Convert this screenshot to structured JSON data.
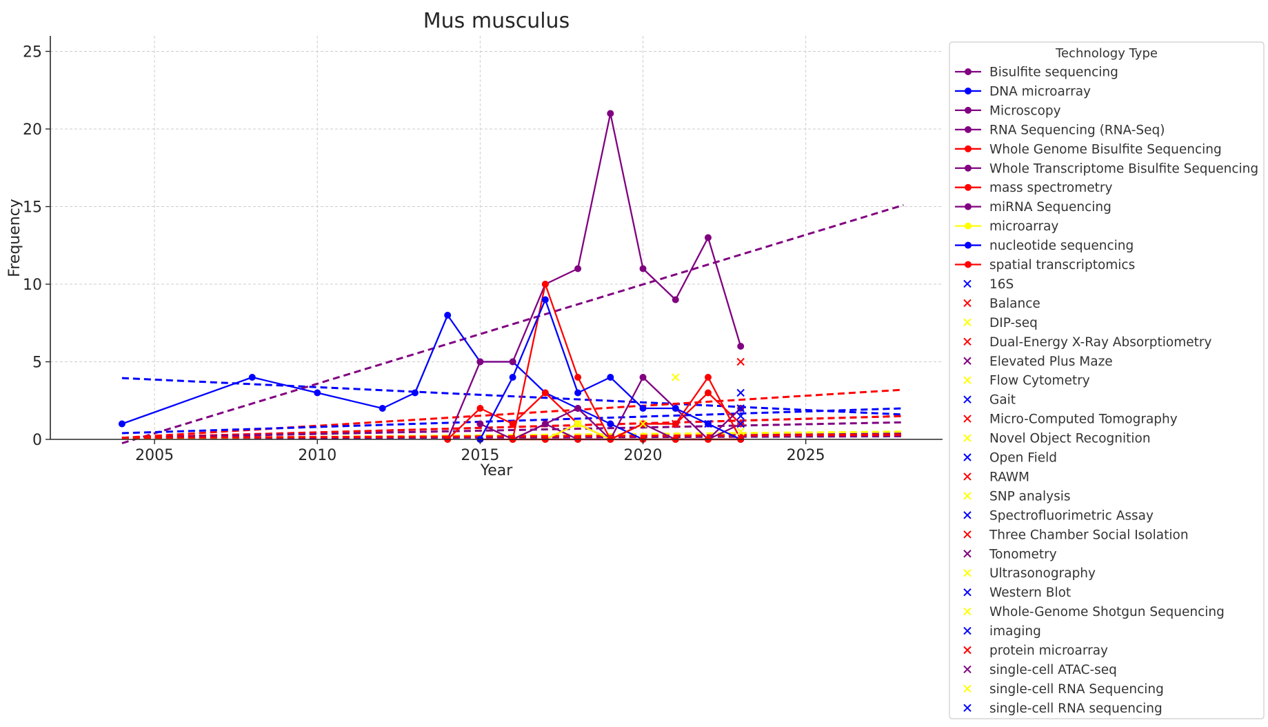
{
  "chart_data": {
    "type": "line",
    "title": "Mus musculus",
    "xlabel": "Year",
    "ylabel": "Frequency",
    "xlim": [
      2001.8,
      2029.2
    ],
    "ylim": [
      0,
      26
    ],
    "xticks": [
      2005,
      2010,
      2015,
      2020,
      2025
    ],
    "yticks": [
      0,
      5,
      10,
      15,
      20,
      25
    ],
    "grid": true,
    "legend": {
      "title": "Technology Type",
      "placement": "outside-right"
    },
    "line_series": [
      {
        "name": "Bisulfite sequencing",
        "color": "#800080",
        "points": [
          [
            2015,
            1
          ],
          [
            2016,
            0
          ],
          [
            2017,
            1
          ],
          [
            2018,
            0
          ],
          [
            2019,
            0
          ],
          [
            2020,
            1
          ],
          [
            2021,
            0
          ],
          [
            2022,
            0
          ],
          [
            2023,
            1
          ]
        ],
        "trend": [
          [
            2004,
            0.1
          ],
          [
            2028,
            1.5
          ]
        ]
      },
      {
        "name": "DNA microarray",
        "color": "#0000ff",
        "points": [
          [
            2004,
            1
          ],
          [
            2008,
            4
          ],
          [
            2010,
            3
          ],
          [
            2012,
            2
          ],
          [
            2013,
            3
          ],
          [
            2014,
            8
          ],
          [
            2015,
            5
          ],
          [
            2016,
            5
          ],
          [
            2017,
            3
          ],
          [
            2018,
            2
          ],
          [
            2019,
            1
          ],
          [
            2020,
            0
          ],
          [
            2021,
            0
          ],
          [
            2022,
            0
          ]
        ],
        "trend": [
          [
            2004,
            3.95
          ],
          [
            2028,
            1.6
          ]
        ]
      },
      {
        "name": "Microscopy",
        "color": "#800080",
        "points": [
          [
            2016,
            0
          ],
          [
            2017,
            0
          ],
          [
            2018,
            1
          ],
          [
            2019,
            0
          ],
          [
            2020,
            0
          ],
          [
            2021,
            0
          ],
          [
            2022,
            0
          ],
          [
            2023,
            0
          ]
        ],
        "trend": [
          [
            2004,
            0.05
          ],
          [
            2028,
            0.4
          ]
        ]
      },
      {
        "name": "RNA Sequencing (RNA-Seq)",
        "color": "#800080",
        "points": [
          [
            2014,
            0
          ],
          [
            2015,
            5
          ],
          [
            2016,
            5
          ],
          [
            2017,
            10
          ],
          [
            2018,
            11
          ],
          [
            2019,
            21
          ],
          [
            2020,
            11
          ],
          [
            2021,
            9
          ],
          [
            2022,
            13
          ],
          [
            2023,
            6
          ]
        ],
        "trend": [
          [
            2004,
            -3.5
          ],
          [
            2028,
            15.1
          ]
        ]
      },
      {
        "name": "Whole Genome Bisulfite Sequencing",
        "color": "#ff0000",
        "points": [
          [
            2014,
            0
          ],
          [
            2015,
            2
          ],
          [
            2016,
            1
          ],
          [
            2017,
            3
          ],
          [
            2018,
            1
          ],
          [
            2019,
            0
          ],
          [
            2020,
            1
          ],
          [
            2021,
            1
          ],
          [
            2022,
            3
          ],
          [
            2023,
            1
          ]
        ],
        "trend": [
          [
            2004,
            0.1
          ],
          [
            2028,
            1.5
          ]
        ]
      },
      {
        "name": "Whole Transcriptome Bisulfite Sequencing",
        "color": "#800080",
        "points": [
          [
            2016,
            0
          ],
          [
            2017,
            1
          ],
          [
            2018,
            2
          ],
          [
            2019,
            0
          ],
          [
            2020,
            4
          ],
          [
            2021,
            2
          ],
          [
            2022,
            0
          ],
          [
            2023,
            2
          ]
        ],
        "trend": [
          [
            2004,
            0.1
          ],
          [
            2028,
            1.1
          ]
        ]
      },
      {
        "name": "mass spectrometry",
        "color": "#ff0000",
        "points": [
          [
            2015,
            0
          ],
          [
            2016,
            0
          ],
          [
            2017,
            10
          ],
          [
            2018,
            4
          ],
          [
            2019,
            0
          ],
          [
            2020,
            1
          ],
          [
            2021,
            1
          ],
          [
            2022,
            4
          ],
          [
            2023,
            0
          ]
        ],
        "trend": [
          [
            2004,
            0.1
          ],
          [
            2028,
            3.2
          ]
        ]
      },
      {
        "name": "miRNA Sequencing",
        "color": "#800080",
        "points": [
          [
            2016,
            0
          ],
          [
            2017,
            0
          ],
          [
            2018,
            0
          ],
          [
            2019,
            0
          ],
          [
            2020,
            0
          ],
          [
            2021,
            0
          ],
          [
            2022,
            0
          ],
          [
            2023,
            0
          ]
        ],
        "trend": [
          [
            2004,
            0.05
          ],
          [
            2028,
            0.2
          ]
        ]
      },
      {
        "name": "microarray",
        "color": "#ffff00",
        "points": [
          [
            2016,
            0
          ],
          [
            2017,
            0
          ],
          [
            2018,
            1
          ],
          [
            2019,
            0
          ],
          [
            2020,
            0
          ],
          [
            2021,
            0
          ],
          [
            2022,
            0
          ],
          [
            2023,
            0
          ]
        ],
        "trend": [
          [
            2004,
            0.05
          ],
          [
            2028,
            0.5
          ]
        ]
      },
      {
        "name": "nucleotide sequencing",
        "color": "#0000ff",
        "points": [
          [
            2015,
            0
          ],
          [
            2016,
            4
          ],
          [
            2017,
            9
          ],
          [
            2018,
            3
          ],
          [
            2019,
            4
          ],
          [
            2020,
            2
          ],
          [
            2021,
            2
          ],
          [
            2022,
            1
          ],
          [
            2023,
            0
          ]
        ],
        "trend": [
          [
            2004,
            0.4
          ],
          [
            2028,
            2.0
          ]
        ]
      },
      {
        "name": "spatial transcriptomics",
        "color": "#ff0000",
        "points": [
          [
            2016,
            0
          ],
          [
            2017,
            0
          ],
          [
            2018,
            0
          ],
          [
            2019,
            0
          ],
          [
            2020,
            0
          ],
          [
            2021,
            0
          ],
          [
            2022,
            0
          ],
          [
            2023,
            0
          ]
        ],
        "trend": [
          [
            2004,
            0.1
          ],
          [
            2028,
            0.3
          ]
        ]
      }
    ],
    "marker_series": [
      {
        "name": "16S",
        "color": "#0000ff",
        "points": [
          [
            2023,
            1.5
          ]
        ]
      },
      {
        "name": "Balance",
        "color": "#ff0000",
        "points": [
          [
            2023,
            1
          ]
        ]
      },
      {
        "name": "DIP-seq",
        "color": "#ffff00",
        "points": [
          [
            2018,
            1
          ]
        ]
      },
      {
        "name": "Dual-Energy X-Ray Absorptiometry",
        "color": "#ff0000",
        "points": [
          [
            2023,
            5
          ]
        ]
      },
      {
        "name": "Elevated Plus Maze",
        "color": "#800080",
        "points": [
          [
            2023,
            2
          ]
        ]
      },
      {
        "name": "Flow Cytometry",
        "color": "#ffff00",
        "points": [
          [
            2021,
            4
          ]
        ]
      },
      {
        "name": "Gait",
        "color": "#0000ff",
        "points": [
          [
            2023,
            3
          ]
        ]
      },
      {
        "name": "Micro-Computed Tomography",
        "color": "#ff0000",
        "points": [
          [
            2023,
            1
          ]
        ]
      },
      {
        "name": "Novel Object Recognition",
        "color": "#ffff00",
        "points": [
          [
            2023,
            0.5
          ]
        ]
      },
      {
        "name": "Open Field",
        "color": "#0000ff",
        "points": [
          [
            2023,
            2
          ]
        ]
      },
      {
        "name": "RAWM",
        "color": "#ff0000",
        "points": [
          [
            2023,
            1
          ]
        ]
      },
      {
        "name": "SNP analysis",
        "color": "#ffff00",
        "points": [
          [
            2021,
            1
          ]
        ]
      },
      {
        "name": "Spectrofluorimetric Assay",
        "color": "#0000ff",
        "points": [
          [
            2021,
            1
          ]
        ]
      },
      {
        "name": "Three Chamber Social Isolation",
        "color": "#ff0000",
        "points": [
          [
            2023,
            1
          ]
        ]
      },
      {
        "name": "Tonometry",
        "color": "#800080",
        "points": [
          [
            2023,
            1
          ]
        ]
      },
      {
        "name": "Ultrasonography",
        "color": "#ffff00",
        "points": [
          [
            2023,
            1
          ]
        ]
      },
      {
        "name": "Western Blot",
        "color": "#0000ff",
        "points": [
          [
            2021,
            1
          ]
        ]
      },
      {
        "name": "Whole-Genome Shotgun Sequencing",
        "color": "#ffff00",
        "points": [
          [
            2020,
            1
          ]
        ]
      },
      {
        "name": "imaging",
        "color": "#0000ff",
        "points": [
          [
            2022,
            1
          ]
        ]
      },
      {
        "name": "protein microarray",
        "color": "#ff0000",
        "points": [
          [
            2021,
            1
          ]
        ]
      },
      {
        "name": "single-cell ATAC-seq",
        "color": "#800080",
        "points": [
          [
            2023,
            1
          ]
        ]
      },
      {
        "name": "single-cell RNA Sequencing",
        "color": "#ffff00",
        "points": [
          [
            2023,
            1
          ]
        ]
      },
      {
        "name": "single-cell RNA sequencing",
        "color": "#0000ff",
        "points": [
          [
            2023,
            1
          ]
        ]
      }
    ]
  }
}
